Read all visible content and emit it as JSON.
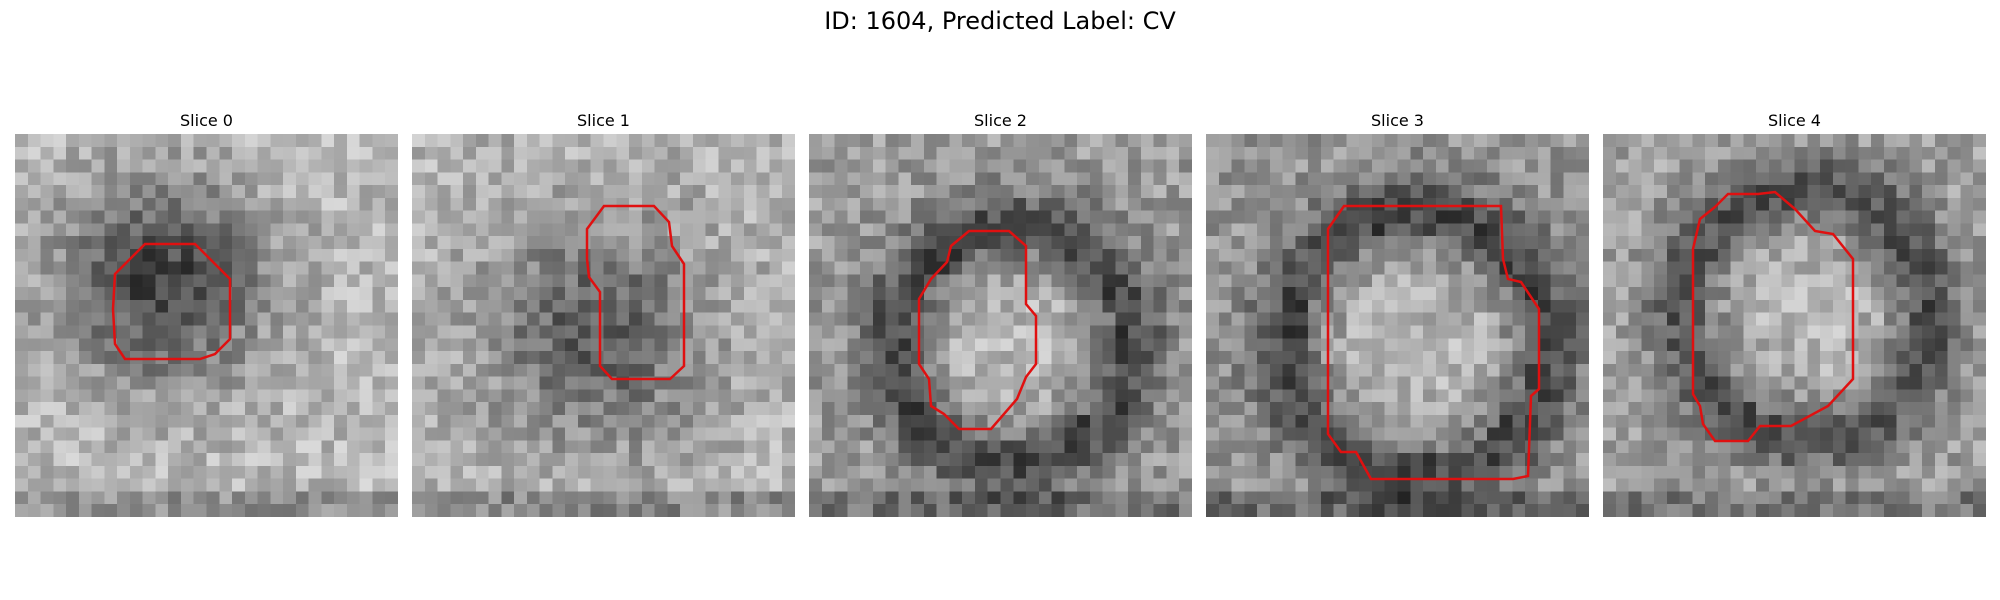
{
  "figure": {
    "title": "ID: 1604, Predicted Label: CV"
  },
  "colors": {
    "contour": "#e01010",
    "background": "#ffffff"
  },
  "panels": [
    {
      "title": "Slice 0"
    },
    {
      "title": "Slice 1"
    },
    {
      "title": "Slice 2"
    },
    {
      "title": "Slice 3"
    },
    {
      "title": "Slice 4"
    }
  ]
}
